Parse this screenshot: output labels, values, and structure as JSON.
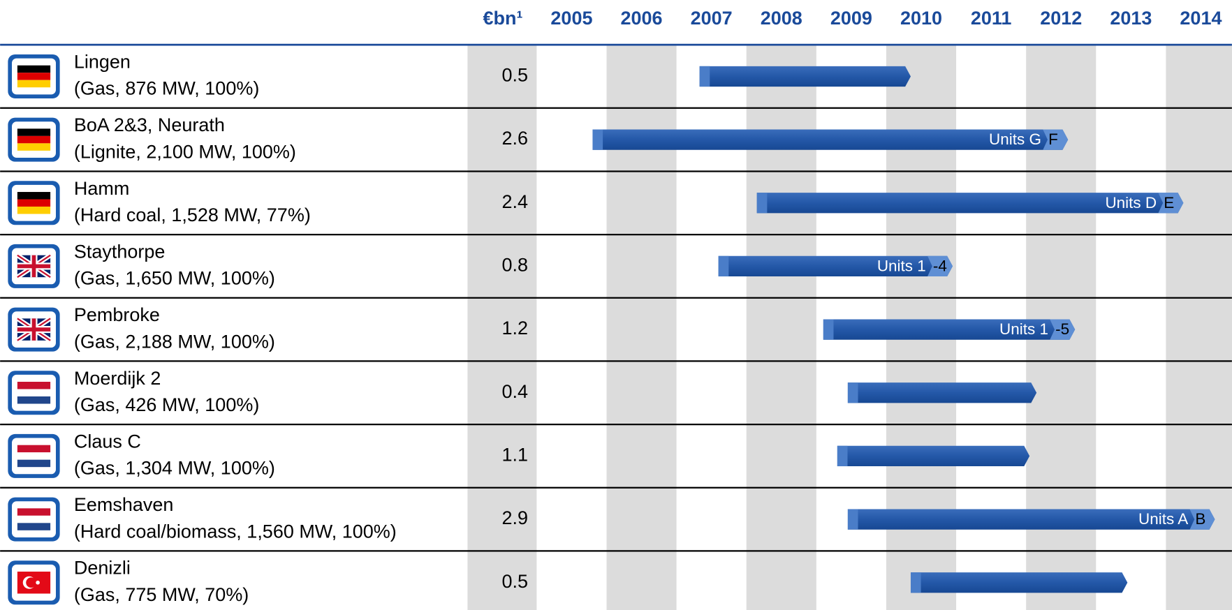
{
  "chart_data": {
    "type": "gantt",
    "value_header": "€bn¹",
    "xlim": [
      2005,
      2015
    ],
    "xticks": [
      2005,
      2006,
      2007,
      2008,
      2009,
      2010,
      2011,
      2012,
      2013,
      2014
    ],
    "color": "#2458a8",
    "categories": [
      "Lingen",
      "BoA 2&3, Neurath",
      "Hamm",
      "Staythorpe",
      "Pembroke",
      "Moerdijk 2",
      "Claus C",
      "Eemshaven",
      "Denizli"
    ],
    "details": [
      "(Gas, 876 MW, 100%)",
      "(Lignite, 2,100 MW, 100%)",
      "(Hard coal, 1,528 MW, 77%)",
      "(Gas, 1,650 MW, 100%)",
      "(Gas, 2,188 MW, 100%)",
      "(Gas, 426 MW, 100%)",
      "(Gas, 1,304 MW, 100%)",
      "(Hard coal/biomass, 1,560 MW, 100%)",
      "(Gas, 775 MW, 70%)"
    ],
    "values": [
      0.5,
      2.6,
      2.4,
      0.8,
      1.2,
      0.4,
      1.1,
      2.9,
      0.5
    ],
    "start": [
      2007.33,
      2005.8,
      2008.15,
      2007.6,
      2009.1,
      2009.45,
      2009.3,
      2009.45,
      2010.35
    ],
    "end": [
      2010.35,
      2012.6,
      2014.25,
      2010.95,
      2012.7,
      2012.15,
      2012.05,
      2014.7,
      2013.45
    ],
    "bar_labels": [
      null,
      [
        "Units G",
        "F"
      ],
      [
        "Units D",
        "E"
      ],
      [
        "Units 1",
        "-4"
      ],
      [
        "Units 1",
        "-5"
      ],
      null,
      null,
      [
        "Units A",
        "B"
      ],
      null
    ]
  }
}
